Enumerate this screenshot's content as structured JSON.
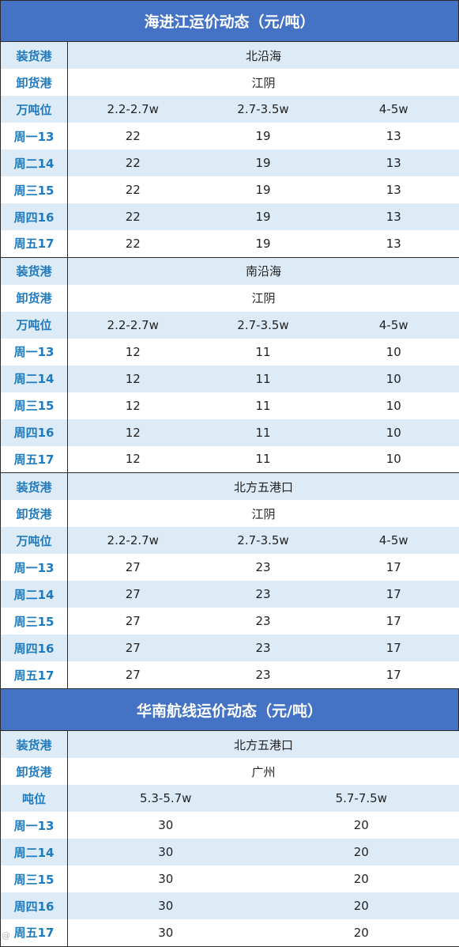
{
  "section1": {
    "title": "海进江运价动态（元/吨）",
    "blocks": [
      {
        "load_label": "装货港",
        "load_value": "北沿海",
        "unload_label": "卸货港",
        "unload_value": "江阴",
        "tonnage_label": "万吨位",
        "tonnage": [
          "2.2-2.7w",
          "2.7-3.5w",
          "4-5w"
        ],
        "rows": [
          {
            "day": "周一13",
            "values": [
              "22",
              "19",
              "13"
            ]
          },
          {
            "day": "周二14",
            "values": [
              "22",
              "19",
              "13"
            ]
          },
          {
            "day": "周三15",
            "values": [
              "22",
              "19",
              "13"
            ]
          },
          {
            "day": "周四16",
            "values": [
              "22",
              "19",
              "13"
            ]
          },
          {
            "day": "周五17",
            "values": [
              "22",
              "19",
              "13"
            ]
          }
        ]
      },
      {
        "load_label": "装货港",
        "load_value": "南沿海",
        "unload_label": "卸货港",
        "unload_value": "江阴",
        "tonnage_label": "万吨位",
        "tonnage": [
          "2.2-2.7w",
          "2.7-3.5w",
          "4-5w"
        ],
        "rows": [
          {
            "day": "周一13",
            "values": [
              "12",
              "11",
              "10"
            ]
          },
          {
            "day": "周二14",
            "values": [
              "12",
              "11",
              "10"
            ]
          },
          {
            "day": "周三15",
            "values": [
              "12",
              "11",
              "10"
            ]
          },
          {
            "day": "周四16",
            "values": [
              "12",
              "11",
              "10"
            ]
          },
          {
            "day": "周五17",
            "values": [
              "12",
              "11",
              "10"
            ]
          }
        ]
      },
      {
        "load_label": "装货港",
        "load_value": "北方五港口",
        "unload_label": "卸货港",
        "unload_value": "江阴",
        "tonnage_label": "万吨位",
        "tonnage": [
          "2.2-2.7w",
          "2.7-3.5w",
          "4-5w"
        ],
        "rows": [
          {
            "day": "周一13",
            "values": [
              "27",
              "23",
              "17"
            ]
          },
          {
            "day": "周二14",
            "values": [
              "27",
              "23",
              "17"
            ]
          },
          {
            "day": "周三15",
            "values": [
              "27",
              "23",
              "17"
            ]
          },
          {
            "day": "周四16",
            "values": [
              "27",
              "23",
              "17"
            ]
          },
          {
            "day": "周五17",
            "values": [
              "27",
              "23",
              "17"
            ]
          }
        ]
      }
    ]
  },
  "section2": {
    "title": "华南航线运价动态（元/吨）",
    "block": {
      "load_label": "装货港",
      "load_value": "北方五港口",
      "unload_label": "卸货港",
      "unload_value": "广州",
      "tonnage_label": "吨位",
      "tonnage": [
        "5.3-5.7w",
        "5.7-7.5w"
      ],
      "rows": [
        {
          "day": "周一13",
          "values": [
            "30",
            "20"
          ]
        },
        {
          "day": "周二14",
          "values": [
            "30",
            "20"
          ]
        },
        {
          "day": "周三15",
          "values": [
            "30",
            "20"
          ]
        },
        {
          "day": "周四16",
          "values": [
            "30",
            "20"
          ]
        },
        {
          "day": "周五17",
          "values": [
            "30",
            "20"
          ]
        }
      ]
    }
  },
  "colors": {
    "banner": "#4472c4",
    "stripe": "#ddebf7",
    "label_text": "#1f7bbf"
  }
}
